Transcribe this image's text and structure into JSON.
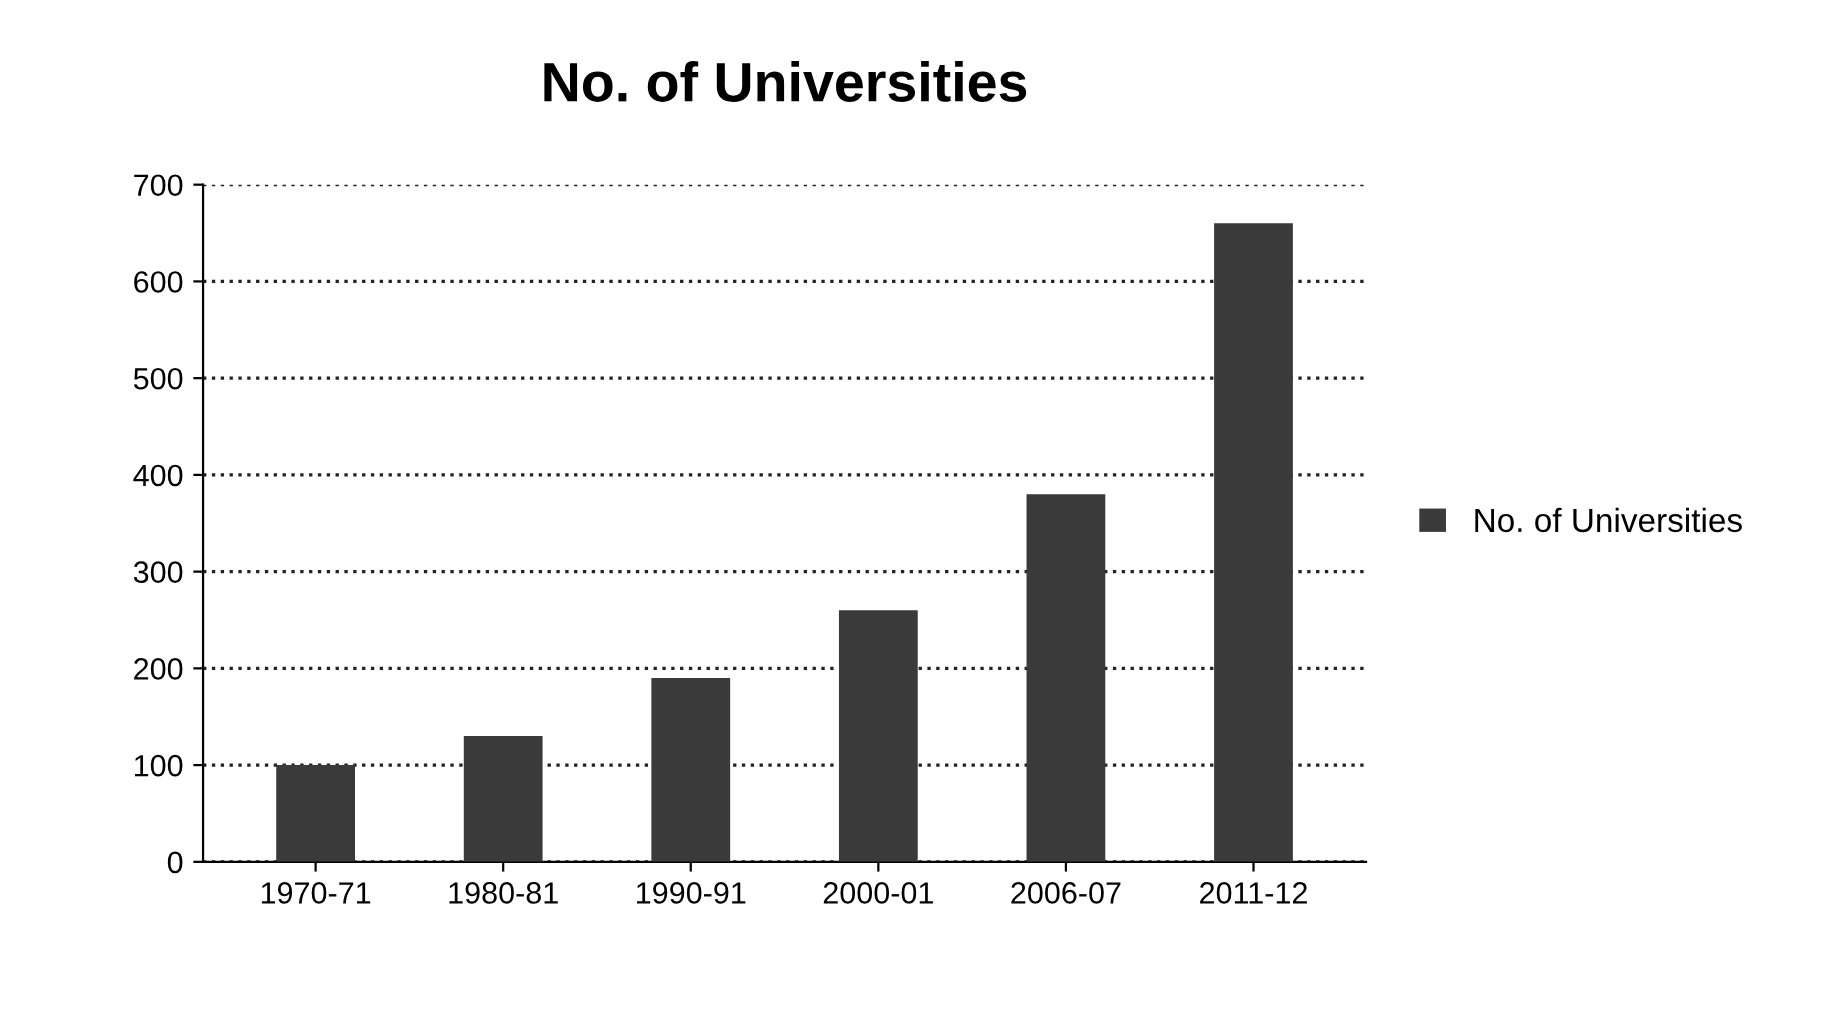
{
  "chart_data": {
    "type": "bar",
    "title": "No. of Universities",
    "categories": [
      "1970-71",
      "1980-81",
      "1990-91",
      "2000-01",
      "2006-07",
      "2011-12"
    ],
    "series": [
      {
        "name": "No. of Universities",
        "color": "#3a3a3a",
        "values": [
          100,
          130,
          190,
          260,
          380,
          660
        ]
      }
    ],
    "ylim": [
      0,
      700
    ],
    "yticks": [
      0,
      100,
      200,
      300,
      400,
      500,
      600,
      700
    ],
    "grid": "y",
    "legend": "right"
  }
}
